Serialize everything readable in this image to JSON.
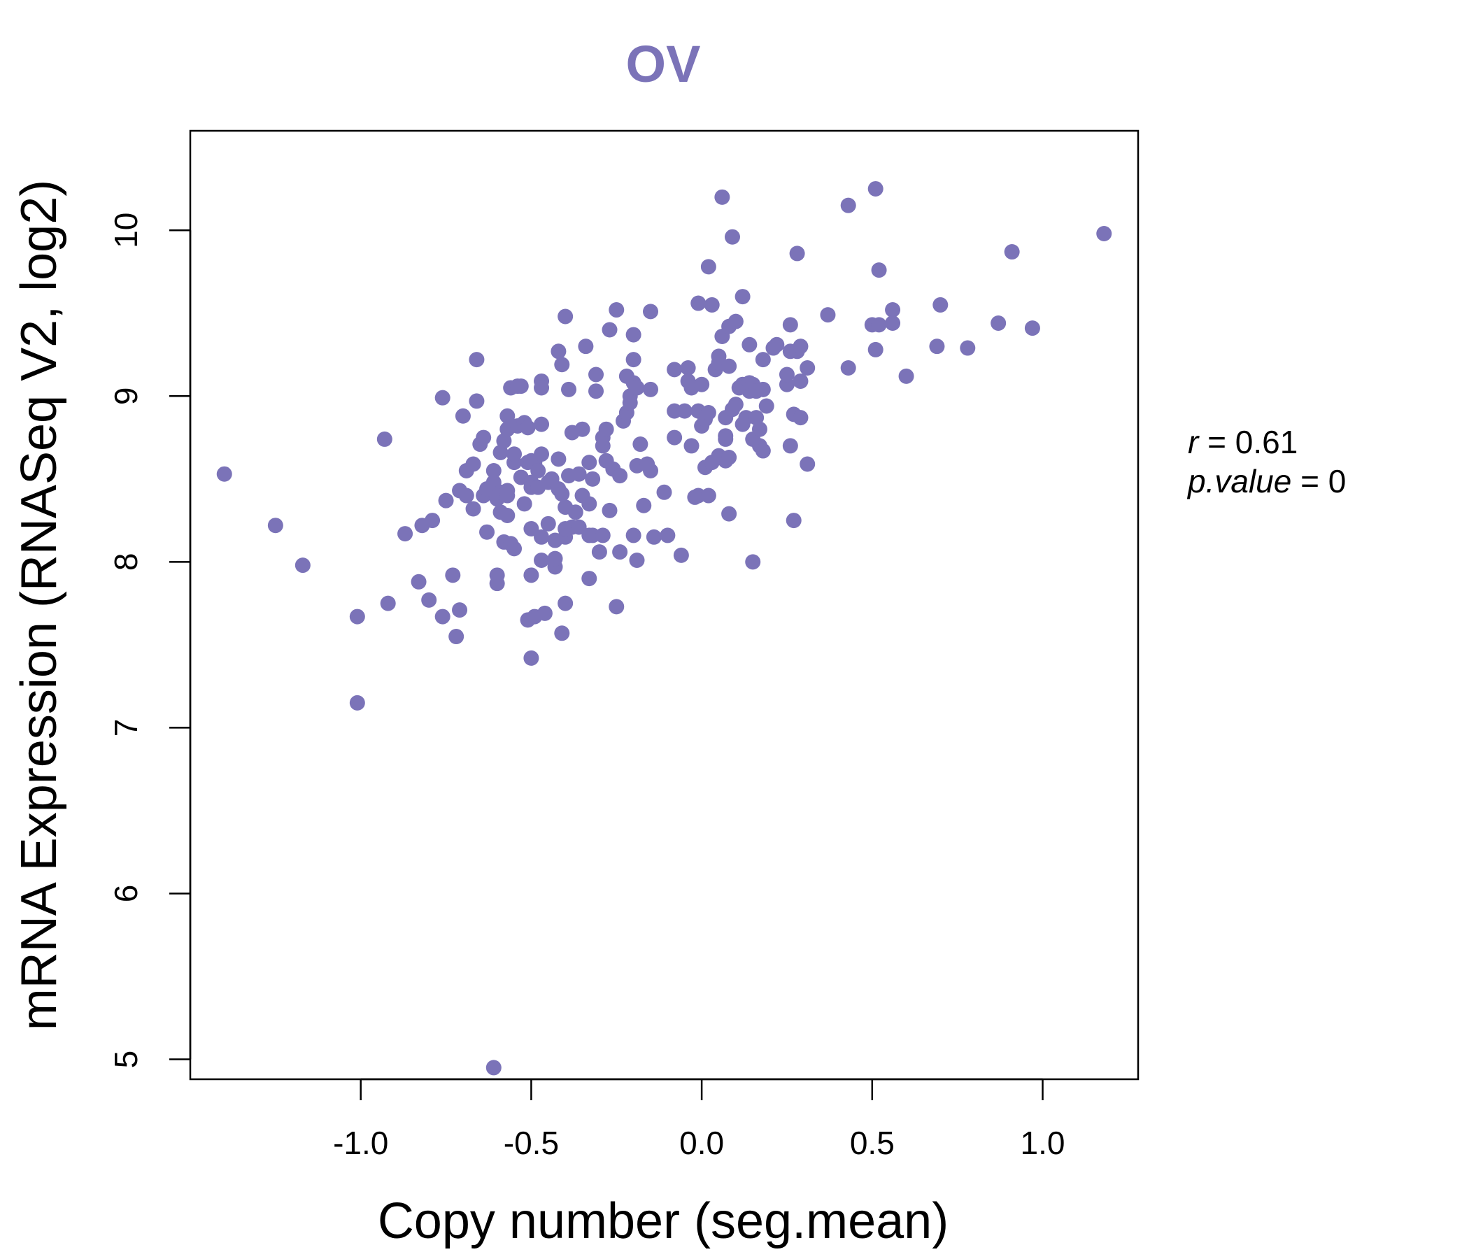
{
  "chart_data": {
    "type": "scatter",
    "title": "OV",
    "xlabel": "Copy number (seg.mean)",
    "ylabel": "mRNA Expression (RNASeq V2, log2)",
    "xlim": [
      -1.5,
      1.28
    ],
    "ylim": [
      4.88,
      10.6
    ],
    "xticks": [
      -1.0,
      -0.5,
      0.0,
      0.5,
      1.0
    ],
    "xtick_labels": [
      "-1.0",
      "-0.5",
      "0.0",
      "0.5",
      "1.0"
    ],
    "yticks": [
      5,
      6,
      7,
      8,
      9,
      10
    ],
    "ytick_labels": [
      "5",
      "6",
      "7",
      "8",
      "9",
      "10"
    ],
    "color": "#7b73b8",
    "stats": {
      "r_label": "r",
      "r_value": "0.61",
      "p_label": "p.value",
      "p_value": "0"
    },
    "points": [
      [
        -1.4,
        8.53
      ],
      [
        -1.25,
        8.22
      ],
      [
        -1.17,
        7.98
      ],
      [
        -1.01,
        7.67
      ],
      [
        -1.01,
        7.15
      ],
      [
        -0.93,
        8.74
      ],
      [
        -0.92,
        7.75
      ],
      [
        -0.87,
        8.17
      ],
      [
        -0.83,
        7.88
      ],
      [
        -0.82,
        8.22
      ],
      [
        -0.8,
        7.77
      ],
      [
        -0.79,
        8.25
      ],
      [
        -0.76,
        7.67
      ],
      [
        -0.76,
        8.99
      ],
      [
        -0.75,
        8.37
      ],
      [
        -0.73,
        7.92
      ],
      [
        -0.72,
        7.55
      ],
      [
        -0.71,
        7.71
      ],
      [
        -0.71,
        8.43
      ],
      [
        -0.7,
        8.88
      ],
      [
        -0.69,
        8.4
      ],
      [
        -0.69,
        8.55
      ],
      [
        -0.67,
        8.32
      ],
      [
        -0.67,
        8.59
      ],
      [
        -0.66,
        9.22
      ],
      [
        -0.66,
        8.97
      ],
      [
        -0.65,
        8.71
      ],
      [
        -0.64,
        8.4
      ],
      [
        -0.64,
        8.75
      ],
      [
        -0.63,
        8.44
      ],
      [
        -0.63,
        8.18
      ],
      [
        -0.61,
        8.55
      ],
      [
        -0.61,
        8.48
      ],
      [
        -0.6,
        8.38
      ],
      [
        -0.6,
        7.92
      ],
      [
        -0.6,
        7.87
      ],
      [
        -0.59,
        8.3
      ],
      [
        -0.59,
        8.42
      ],
      [
        -0.59,
        8.66
      ],
      [
        -0.58,
        8.12
      ],
      [
        -0.58,
        8.73
      ],
      [
        -0.57,
        8.28
      ],
      [
        -0.57,
        8.43
      ],
      [
        -0.57,
        8.4
      ],
      [
        -0.57,
        8.88
      ],
      [
        -0.57,
        8.8
      ],
      [
        -0.56,
        8.11
      ],
      [
        -0.56,
        9.05
      ],
      [
        -0.55,
        8.6
      ],
      [
        -0.55,
        8.65
      ],
      [
        -0.55,
        8.08
      ],
      [
        -0.54,
        9.06
      ],
      [
        -0.54,
        8.82
      ],
      [
        -0.53,
        8.51
      ],
      [
        -0.53,
        9.06
      ],
      [
        -0.52,
        8.35
      ],
      [
        -0.52,
        8.84
      ],
      [
        -0.51,
        8.6
      ],
      [
        -0.51,
        7.65
      ],
      [
        -0.51,
        8.81
      ],
      [
        -0.5,
        8.61
      ],
      [
        -0.5,
        8.48
      ],
      [
        -0.5,
        8.45
      ],
      [
        -0.5,
        8.2
      ],
      [
        -0.5,
        7.92
      ],
      [
        -0.5,
        7.42
      ],
      [
        -0.49,
        7.67
      ],
      [
        -0.49,
        8.6
      ],
      [
        -0.48,
        8.45
      ],
      [
        -0.48,
        8.55
      ],
      [
        -0.47,
        8.65
      ],
      [
        -0.47,
        8.15
      ],
      [
        -0.47,
        8.01
      ],
      [
        -0.47,
        9.09
      ],
      [
        -0.47,
        9.05
      ],
      [
        -0.47,
        8.83
      ],
      [
        -0.46,
        7.69
      ],
      [
        -0.45,
        8.23
      ],
      [
        -0.45,
        8.48
      ],
      [
        -0.44,
        8.5
      ],
      [
        -0.43,
        8.13
      ],
      [
        -0.43,
        7.97
      ],
      [
        -0.43,
        8.02
      ],
      [
        -0.42,
        8.44
      ],
      [
        -0.42,
        8.62
      ],
      [
        -0.42,
        9.27
      ],
      [
        -0.41,
        7.57
      ],
      [
        -0.41,
        8.41
      ],
      [
        -0.41,
        9.19
      ],
      [
        -0.4,
        8.15
      ],
      [
        -0.4,
        8.2
      ],
      [
        -0.4,
        8.33
      ],
      [
        -0.4,
        7.75
      ],
      [
        -0.4,
        9.48
      ],
      [
        -0.39,
        8.52
      ],
      [
        -0.39,
        9.04
      ],
      [
        -0.38,
        8.78
      ],
      [
        -0.38,
        8.21
      ],
      [
        -0.37,
        8.3
      ],
      [
        -0.36,
        8.21
      ],
      [
        -0.36,
        8.53
      ],
      [
        -0.35,
        8.8
      ],
      [
        -0.35,
        8.4
      ],
      [
        -0.34,
        9.3
      ],
      [
        -0.33,
        8.16
      ],
      [
        -0.33,
        7.9
      ],
      [
        -0.33,
        8.6
      ],
      [
        -0.33,
        8.35
      ],
      [
        -0.32,
        8.5
      ],
      [
        -0.32,
        8.16
      ],
      [
        -0.31,
        9.13
      ],
      [
        -0.31,
        9.03
      ],
      [
        -0.3,
        8.06
      ],
      [
        -0.29,
        8.7
      ],
      [
        -0.29,
        8.75
      ],
      [
        -0.29,
        8.16
      ],
      [
        -0.28,
        8.61
      ],
      [
        -0.28,
        8.8
      ],
      [
        -0.27,
        8.31
      ],
      [
        -0.27,
        9.4
      ],
      [
        -0.26,
        8.56
      ],
      [
        -0.25,
        7.73
      ],
      [
        -0.25,
        9.52
      ],
      [
        -0.24,
        8.52
      ],
      [
        -0.24,
        8.06
      ],
      [
        -0.23,
        8.85
      ],
      [
        -0.22,
        9.12
      ],
      [
        -0.22,
        8.9
      ],
      [
        -0.21,
        9.0
      ],
      [
        -0.21,
        8.96
      ],
      [
        -0.2,
        8.16
      ],
      [
        -0.2,
        9.22
      ],
      [
        -0.2,
        9.37
      ],
      [
        -0.2,
        9.08
      ],
      [
        -0.19,
        8.58
      ],
      [
        -0.19,
        8.01
      ],
      [
        -0.19,
        9.05
      ],
      [
        -0.18,
        8.71
      ],
      [
        -0.17,
        8.34
      ],
      [
        -0.16,
        8.59
      ],
      [
        -0.15,
        8.55
      ],
      [
        -0.15,
        9.04
      ],
      [
        -0.15,
        9.51
      ],
      [
        -0.14,
        8.15
      ],
      [
        -0.11,
        8.42
      ],
      [
        -0.1,
        8.16
      ],
      [
        -0.08,
        8.75
      ],
      [
        -0.08,
        8.91
      ],
      [
        -0.08,
        9.16
      ],
      [
        -0.06,
        8.04
      ],
      [
        -0.05,
        8.91
      ],
      [
        -0.04,
        9.17
      ],
      [
        -0.04,
        9.09
      ],
      [
        -0.03,
        8.7
      ],
      [
        -0.03,
        9.05
      ],
      [
        -0.02,
        8.39
      ],
      [
        -0.01,
        8.4
      ],
      [
        -0.01,
        9.56
      ],
      [
        -0.01,
        8.91
      ],
      [
        0.0,
        9.07
      ],
      [
        0.0,
        8.82
      ],
      [
        0.01,
        8.86
      ],
      [
        0.01,
        8.57
      ],
      [
        0.02,
        9.78
      ],
      [
        0.02,
        8.4
      ],
      [
        0.02,
        8.9
      ],
      [
        0.03,
        9.55
      ],
      [
        0.03,
        8.6
      ],
      [
        0.04,
        9.16
      ],
      [
        0.05,
        8.64
      ],
      [
        0.05,
        9.24
      ],
      [
        0.05,
        9.2
      ],
      [
        0.06,
        10.2
      ],
      [
        0.06,
        9.36
      ],
      [
        0.07,
        8.87
      ],
      [
        0.07,
        8.76
      ],
      [
        0.07,
        8.61
      ],
      [
        0.07,
        8.74
      ],
      [
        0.08,
        9.18
      ],
      [
        0.08,
        8.29
      ],
      [
        0.08,
        8.63
      ],
      [
        0.08,
        9.42
      ],
      [
        0.09,
        9.96
      ],
      [
        0.09,
        8.92
      ],
      [
        0.1,
        9.45
      ],
      [
        0.1,
        8.95
      ],
      [
        0.11,
        9.05
      ],
      [
        0.12,
        9.6
      ],
      [
        0.12,
        9.07
      ],
      [
        0.12,
        8.83
      ],
      [
        0.13,
        8.87
      ],
      [
        0.14,
        9.03
      ],
      [
        0.14,
        9.08
      ],
      [
        0.14,
        9.31
      ],
      [
        0.15,
        9.07
      ],
      [
        0.15,
        8.74
      ],
      [
        0.15,
        8.0
      ],
      [
        0.16,
        9.03
      ],
      [
        0.16,
        8.87
      ],
      [
        0.17,
        8.8
      ],
      [
        0.17,
        8.7
      ],
      [
        0.18,
        8.67
      ],
      [
        0.18,
        9.22
      ],
      [
        0.18,
        9.04
      ],
      [
        0.19,
        8.94
      ],
      [
        0.21,
        9.29
      ],
      [
        0.22,
        9.31
      ],
      [
        0.25,
        9.07
      ],
      [
        0.25,
        9.13
      ],
      [
        0.26,
        9.43
      ],
      [
        0.26,
        9.27
      ],
      [
        0.26,
        8.7
      ],
      [
        0.27,
        8.89
      ],
      [
        0.27,
        8.25
      ],
      [
        0.28,
        9.27
      ],
      [
        0.28,
        9.86
      ],
      [
        0.29,
        9.3
      ],
      [
        0.29,
        8.87
      ],
      [
        0.29,
        9.09
      ],
      [
        0.31,
        8.59
      ],
      [
        0.31,
        9.17
      ],
      [
        0.37,
        9.49
      ],
      [
        0.43,
        10.15
      ],
      [
        0.43,
        9.17
      ],
      [
        0.5,
        9.43
      ],
      [
        0.51,
        10.25
      ],
      [
        0.51,
        9.28
      ],
      [
        0.52,
        9.76
      ],
      [
        0.52,
        9.43
      ],
      [
        0.56,
        9.52
      ],
      [
        0.56,
        9.44
      ],
      [
        0.6,
        9.12
      ],
      [
        0.69,
        9.3
      ],
      [
        0.7,
        9.55
      ],
      [
        0.78,
        9.29
      ],
      [
        0.87,
        9.44
      ],
      [
        0.91,
        9.87
      ],
      [
        0.97,
        9.41
      ],
      [
        1.18,
        9.98
      ],
      [
        -0.61,
        4.95
      ]
    ]
  }
}
